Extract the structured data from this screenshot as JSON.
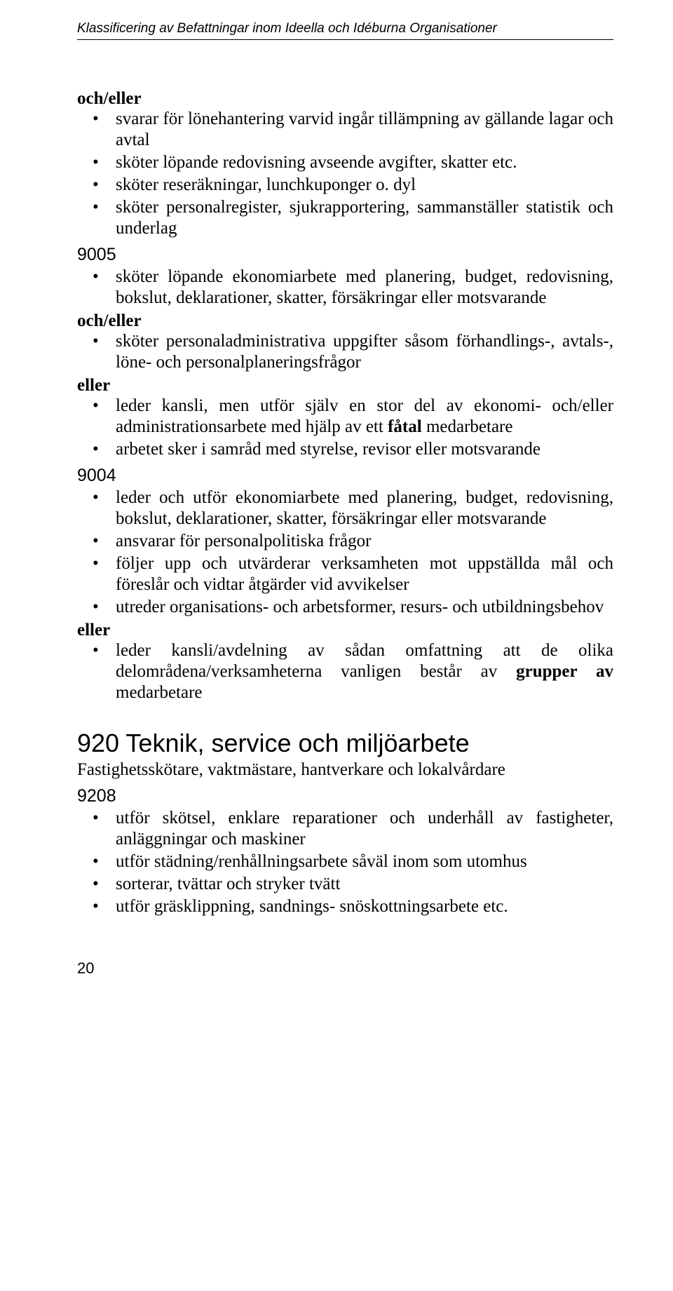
{
  "header": {
    "running": "Klassificering av Befattningar inom Ideella och Idéburna Organisationer"
  },
  "blocks": {
    "ocheller_top": {
      "label": "och/eller",
      "items": [
        "svarar för lönehantering varvid ingår tillämpning av gällande lagar och avtal",
        "sköter löpande redovisning avseende avgifter, skatter etc.",
        "sköter reseräkningar, lunchkuponger o. dyl",
        "sköter personalregister, sjukrapportering, sammanställer statistik och underlag"
      ]
    },
    "code_9005": {
      "code": "9005",
      "items": [
        "sköter löpande ekonomiarbete med planering, budget, redovisning, bokslut, deklarationer, skatter, försäkringar eller motsvarande"
      ]
    },
    "ocheller_mid": {
      "label": "och/eller",
      "items": [
        "sköter personaladministrativa uppgifter såsom förhandlings-, avtals-, löne- och personalplaneringsfrågor"
      ]
    },
    "eller_mid": {
      "label": "eller",
      "item_html": "leder kansli, men utför själv en stor del av ekonomi- och/eller administrationsarbete med hjälp av ett <span class=\"bold-inline\">fåtal</span> medarbetare",
      "item2": "arbetet sker i samråd med styrelse, revisor eller motsvarande"
    },
    "code_9004": {
      "code": "9004",
      "items": [
        "leder och utför ekonomiarbete med planering, budget, redovisning, bokslut, deklarationer, skatter, försäkringar eller motsvarande",
        "ansvarar för personalpolitiska frågor",
        "följer upp och utvärderar verksamheten mot uppställda mål och föreslår och vidtar åtgärder vid avvikelser",
        "utreder organisations- och arbetsformer, resurs- och utbildningsbehov"
      ]
    },
    "eller_bottom": {
      "label": "eller",
      "item_html": "leder kansli/avdelning av sådan omfattning att de olika delområdena/verksamheterna vanligen består av <span class=\"bold-inline\">grupper av</span> medarbetare"
    }
  },
  "section_920": {
    "title": "920 Teknik, service och miljöarbete",
    "subtitle": "Fastighetsskötare, vaktmästare, hantverkare och lokalvårdare",
    "code": "9208",
    "items": [
      "utför skötsel, enklare reparationer och underhåll av fastigheter, anläggningar och maskiner",
      "utför städning/renhållningsarbete såväl inom som utomhus",
      "sorterar, tvättar och stryker tvätt",
      "utför gräsklippning, sandnings- snöskottningsarbete etc."
    ]
  },
  "page_number": "20",
  "style": {
    "body_fontsize_pt": 17,
    "header_fontsize_pt": 14,
    "section_title_fontsize_pt": 27,
    "code_fontsize_pt": 19,
    "pagenum_fontsize_pt": 16,
    "text_color": "#000000",
    "background_color": "#ffffff"
  }
}
